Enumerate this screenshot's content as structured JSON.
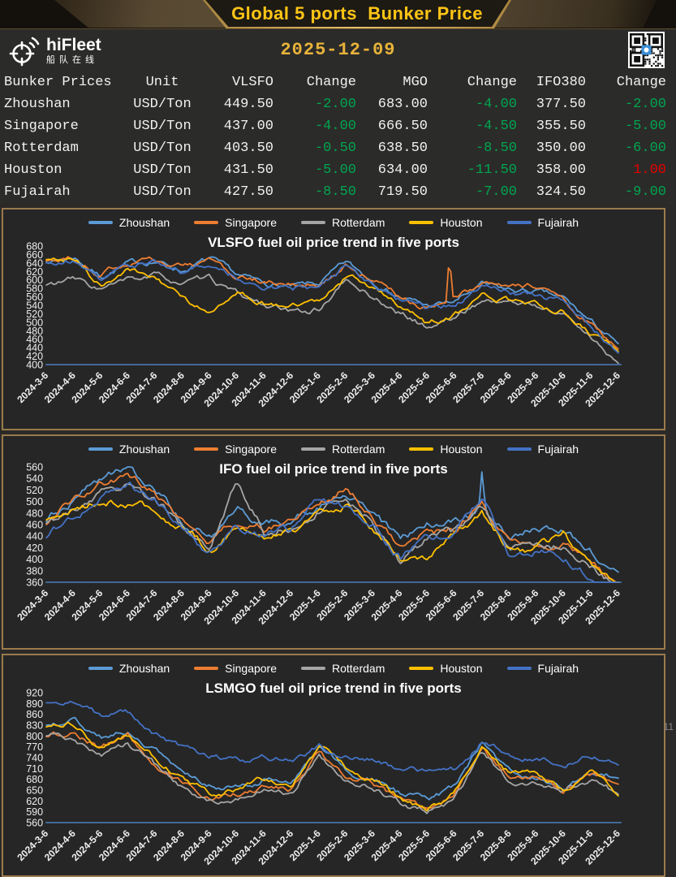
{
  "header": {
    "title": "Global 5 ports  Bunker Price",
    "brand": {
      "name": "hiFleet",
      "subtitle": "船队在线"
    },
    "date": "2025-12-09",
    "page_marker": "11"
  },
  "colors": {
    "title_gold": "#FFC515",
    "date_gold": "#E8B33A",
    "panel_border": "#9A7A4C",
    "background": "#2B2A28",
    "panel_bg": "#262626",
    "text": "#F2F2F2",
    "negative_change": "#00A651",
    "positive_change": "#E60000",
    "axis_line": "#4D7EBF",
    "series": {
      "Zhoushan": "#5B9BD5",
      "Singapore": "#ED7D31",
      "Rotterdam": "#A5A5A5",
      "Houston": "#FFC000",
      "Fujairah": "#4472C4"
    }
  },
  "table": {
    "columns": [
      "Bunker Prices",
      "Unit",
      "VLSFO",
      "Change",
      "MGO",
      "Change",
      "IFO380",
      "Change"
    ],
    "rows": [
      [
        "Zhoushan",
        "USD/Ton",
        "449.50",
        "-2.00",
        "683.00",
        "-4.00",
        "377.50",
        "-2.00"
      ],
      [
        "Singapore",
        "USD/Ton",
        "437.00",
        "-4.00",
        "666.50",
        "-4.50",
        "355.50",
        "-5.00"
      ],
      [
        "Rotterdam",
        "USD/Ton",
        "403.50",
        "-0.50",
        "638.50",
        "-8.50",
        "350.00",
        "-6.00"
      ],
      [
        "Houston",
        "USD/Ton",
        "431.50",
        "-5.00",
        "634.00",
        "-11.50",
        "358.00",
        "1.00"
      ],
      [
        "Fujairah",
        "USD/Ton",
        "427.50",
        "-8.50",
        "719.50",
        "-7.00",
        "324.50",
        "-9.00"
      ]
    ]
  },
  "chart_data": [
    {
      "type": "line",
      "title": "VLSFO fuel oil price trend in five ports",
      "ylim": [
        400,
        680
      ],
      "ytick": 20,
      "legend_position": "top",
      "grid": false,
      "x_labels": [
        "2024-3-6",
        "2024-4-6",
        "2024-5-6",
        "2024-6-6",
        "2024-7-6",
        "2024-8-6",
        "2024-9-6",
        "2024-10-6",
        "2024-11-6",
        "2024-12-6",
        "2025-1-6",
        "2025-2-6",
        "2025-3-6",
        "2025-4-6",
        "2025-5-6",
        "2025-6-6",
        "2025-7-6",
        "2025-8-6",
        "2025-9-6",
        "2025-10-6",
        "2025-11-6",
        "2025-12-6"
      ],
      "series": [
        {
          "name": "Zhoushan",
          "color": "#5B9BD5",
          "values": [
            642,
            655,
            608,
            638,
            645,
            622,
            650,
            610,
            592,
            583,
            590,
            640,
            598,
            560,
            538,
            548,
            588,
            575,
            572,
            555,
            500,
            449.5
          ]
        },
        {
          "name": "Singapore",
          "color": "#ED7D31",
          "values": [
            645,
            650,
            612,
            642,
            648,
            630,
            645,
            605,
            595,
            588,
            592,
            635,
            602,
            562,
            530,
            552,
            592,
            578,
            585,
            548,
            495,
            437
          ]
        },
        {
          "name": "Rotterdam",
          "color": "#A5A5A5",
          "values": [
            588,
            602,
            578,
            598,
            610,
            592,
            602,
            565,
            542,
            522,
            530,
            598,
            560,
            520,
            488,
            512,
            552,
            548,
            538,
            518,
            468,
            403.5
          ]
        },
        {
          "name": "Houston",
          "color": "#FFC000",
          "values": [
            648,
            650,
            585,
            625,
            600,
            560,
            520,
            565,
            545,
            535,
            555,
            605,
            585,
            535,
            495,
            518,
            562,
            552,
            545,
            525,
            470,
            431.5
          ]
        },
        {
          "name": "Fujairah",
          "color": "#4472C4",
          "values": [
            640,
            648,
            605,
            635,
            642,
            618,
            640,
            605,
            588,
            580,
            585,
            632,
            595,
            555,
            528,
            545,
            582,
            570,
            565,
            548,
            492,
            427.5
          ]
        }
      ],
      "spikes": [
        {
          "series": "Singapore",
          "month": 14.8,
          "value": 665
        }
      ]
    },
    {
      "type": "line",
      "title": "IFO fuel oil price trend in five ports",
      "ylim": [
        360,
        560
      ],
      "ytick": 20,
      "legend_position": "top",
      "grid": false,
      "x_labels": [
        "2024-3-6",
        "2024-4-6",
        "2024-5-6",
        "2024-6-6",
        "2024-7-6",
        "2024-8-6",
        "2024-9-6",
        "2024-10-6",
        "2024-11-6",
        "2024-12-6",
        "2025-1-6",
        "2025-2-6",
        "2025-3-6",
        "2025-4-6",
        "2025-5-6",
        "2025-6-6",
        "2025-7-6",
        "2025-8-6",
        "2025-9-6",
        "2025-10-6",
        "2025-11-6",
        "2025-12-6"
      ],
      "series": [
        {
          "name": "Zhoushan",
          "color": "#5B9BD5",
          "values": [
            465,
            500,
            540,
            555,
            522,
            468,
            435,
            488,
            462,
            468,
            492,
            518,
            478,
            432,
            462,
            465,
            490,
            445,
            452,
            448,
            412,
            377.5
          ]
        },
        {
          "name": "Singapore",
          "color": "#ED7D31",
          "values": [
            460,
            498,
            535,
            540,
            515,
            462,
            428,
            465,
            455,
            462,
            500,
            525,
            470,
            425,
            445,
            452,
            495,
            428,
            432,
            428,
            398,
            355.5
          ]
        },
        {
          "name": "Rotterdam",
          "color": "#A5A5A5",
          "values": [
            462,
            488,
            515,
            528,
            505,
            455,
            420,
            535,
            448,
            455,
            488,
            505,
            462,
            395,
            435,
            445,
            490,
            420,
            425,
            420,
            392,
            350
          ]
        },
        {
          "name": "Houston",
          "color": "#FFC000",
          "values": [
            468,
            482,
            498,
            500,
            488,
            450,
            415,
            460,
            440,
            448,
            478,
            495,
            455,
            398,
            400,
            440,
            480,
            415,
            420,
            442,
            395,
            358
          ]
        },
        {
          "name": "Fujairah",
          "color": "#4472C4",
          "values": [
            437,
            472,
            505,
            528,
            498,
            448,
            412,
            455,
            442,
            452,
            502,
            492,
            458,
            402,
            438,
            448,
            508,
            398,
            415,
            405,
            365,
            324.5
          ]
        }
      ],
      "spikes": [
        {
          "series": "Zhoushan",
          "month": 16.0,
          "value": 556
        }
      ]
    },
    {
      "type": "line",
      "title": "LSMGO fuel oil price trend in five ports",
      "ylim": [
        560,
        920
      ],
      "ytick": 30,
      "legend_position": "top",
      "grid": false,
      "x_labels": [
        "2024-3-6",
        "2024-4-6",
        "2024-5-6",
        "2024-6-6",
        "2024-7-6",
        "2024-8-6",
        "2024-9-6",
        "2024-10-6",
        "2024-11-6",
        "2024-12-6",
        "2025-1-6",
        "2025-2-6",
        "2025-3-6",
        "2025-4-6",
        "2025-5-6",
        "2025-6-6",
        "2025-7-6",
        "2025-8-6",
        "2025-9-6",
        "2025-10-6",
        "2025-11-6",
        "2025-12-6"
      ],
      "series": [
        {
          "name": "Zhoushan",
          "color": "#5B9BD5",
          "values": [
            830,
            842,
            798,
            812,
            762,
            700,
            665,
            655,
            682,
            662,
            770,
            700,
            678,
            640,
            622,
            660,
            778,
            700,
            690,
            662,
            700,
            683
          ]
        },
        {
          "name": "Singapore",
          "color": "#ED7D31",
          "values": [
            798,
            812,
            762,
            800,
            722,
            672,
            630,
            642,
            662,
            650,
            752,
            690,
            668,
            620,
            592,
            642,
            762,
            688,
            678,
            650,
            692,
            666.5
          ]
        },
        {
          "name": "Rotterdam",
          "color": "#A5A5A5",
          "values": [
            800,
            790,
            745,
            775,
            718,
            660,
            615,
            630,
            650,
            640,
            755,
            680,
            660,
            610,
            590,
            632,
            752,
            678,
            668,
            645,
            680,
            638.5
          ]
        },
        {
          "name": "Houston",
          "color": "#FFC000",
          "values": [
            825,
            835,
            760,
            800,
            740,
            680,
            640,
            655,
            680,
            660,
            775,
            710,
            680,
            630,
            595,
            645,
            770,
            700,
            690,
            655,
            700,
            634
          ]
        },
        {
          "name": "Fujairah",
          "color": "#4472C4",
          "values": [
            892,
            900,
            855,
            862,
            800,
            768,
            745,
            732,
            738,
            735,
            772,
            745,
            738,
            710,
            702,
            708,
            790,
            745,
            740,
            720,
            745,
            719.5
          ]
        }
      ],
      "spikes": []
    }
  ]
}
